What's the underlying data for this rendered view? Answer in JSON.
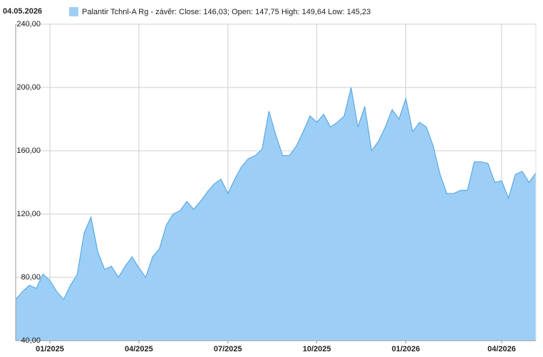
{
  "chart_data": {
    "type": "area",
    "date": "04.05.2026",
    "categories": [
      null,
      null,
      null,
      null,
      null,
      "01/2025",
      null,
      null,
      null,
      null,
      null,
      null,
      null,
      null,
      null,
      null,
      null,
      null,
      "04/2025",
      null,
      null,
      null,
      null,
      null,
      null,
      null,
      null,
      null,
      null,
      null,
      null,
      "07/2025",
      null,
      null,
      null,
      null,
      null,
      null,
      null,
      null,
      null,
      null,
      null,
      null,
      "10/2025",
      null,
      null,
      null,
      null,
      null,
      null,
      null,
      null,
      null,
      null,
      null,
      null,
      "01/2026",
      null,
      null,
      null,
      null,
      null,
      null,
      null,
      null,
      null,
      null,
      null,
      null,
      null,
      "04/2026",
      null,
      null,
      null,
      null,
      null
    ],
    "series": [
      {
        "name": "Palantir Tchnl-A Rg - závěr: Close: 146,03; Open: 147,75 High: 149,64 Low: 145,23",
        "color": "#9dcff6",
        "line_color": "#5aa9e6",
        "values": [
          66,
          71,
          75,
          73,
          82,
          78,
          71,
          66,
          75,
          82,
          108,
          118,
          96,
          85,
          87,
          80,
          87,
          93,
          86,
          80,
          93,
          98,
          113,
          120,
          122,
          128,
          123,
          128,
          134,
          139,
          142,
          133,
          142,
          150,
          155,
          157,
          161,
          185,
          170,
          157,
          157,
          163,
          172,
          182,
          178,
          183,
          175,
          178,
          182,
          200,
          175,
          188,
          160,
          166,
          175,
          186,
          180,
          193,
          172,
          178,
          175,
          163,
          145,
          133,
          133,
          135,
          135,
          153,
          153,
          152,
          140,
          141,
          130,
          145,
          147,
          140,
          146.03
        ]
      }
    ],
    "ylim": [
      40,
      240
    ],
    "yticks": [
      {
        "value": 40,
        "label": "40,00"
      },
      {
        "value": 80,
        "label": "80,00"
      },
      {
        "value": 120,
        "label": "120,00"
      },
      {
        "value": 160,
        "label": "160,00"
      },
      {
        "value": 200,
        "label": "200,00"
      },
      {
        "value": 240,
        "label": "240,00"
      }
    ],
    "grid": true
  }
}
